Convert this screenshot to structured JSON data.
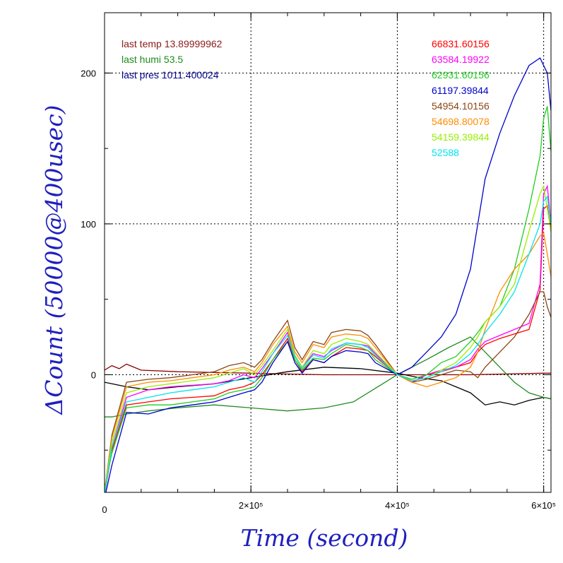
{
  "chart_data": {
    "type": "line",
    "xlabel": "Time (second)",
    "ylabel": "ΔCount (50000@400usec)",
    "xlim": [
      0,
      610000
    ],
    "ylim": [
      -78,
      240
    ],
    "x_ticks": [
      {
        "value": 0,
        "label": "0"
      },
      {
        "value": 200000,
        "label": "2×10⁵"
      },
      {
        "value": 400000,
        "label": "4×10⁵"
      },
      {
        "value": 600000,
        "label": "6×10⁵"
      }
    ],
    "y_ticks": [
      {
        "value": 0,
        "label": "0"
      },
      {
        "value": 100,
        "label": "100"
      },
      {
        "value": 200,
        "label": "200"
      }
    ],
    "grid": true,
    "info_labels": [
      {
        "text": "last temp 13.89999962",
        "color": "#8b1a1a"
      },
      {
        "text": "last humi 53.5",
        "color": "#1a8c1a"
      },
      {
        "text": "last pres 1011.400024",
        "color": "#00008b"
      }
    ],
    "legend_placement": "top-right",
    "series": [
      {
        "name": "66831.60156",
        "color": "#ff0000",
        "y": [
          -80,
          -50,
          -20,
          -18,
          -16,
          -15,
          -14,
          -10,
          -8,
          -5,
          0,
          10,
          24,
          10,
          2,
          10,
          8,
          12,
          18,
          17,
          16,
          12,
          0,
          -5,
          0,
          2,
          5,
          8,
          15,
          20,
          24,
          27,
          30,
          56,
          110,
          112,
          95
        ]
      },
      {
        "name": "63584.19922",
        "color": "#ff00ff",
        "y": [
          -80,
          -48,
          -15,
          -10,
          -8,
          -7,
          -6,
          -4,
          0,
          -2,
          4,
          14,
          28,
          13,
          5,
          14,
          12,
          16,
          21,
          20,
          19,
          14,
          0,
          -5,
          0,
          3,
          5,
          10,
          17,
          22,
          26,
          30,
          34,
          60,
          120,
          125,
          100
        ]
      },
      {
        "name": "62931.60156",
        "color": "#22cc22",
        "y": [
          -75,
          -52,
          -22,
          -20,
          -20,
          -18,
          -16,
          -12,
          -10,
          -8,
          -2,
          10,
          22,
          10,
          3,
          11,
          10,
          14,
          20,
          18,
          16,
          10,
          0,
          -3,
          0,
          8,
          12,
          22,
          28,
          35,
          45,
          70,
          110,
          145,
          170,
          178,
          148
        ]
      },
      {
        "name": "61197.39844",
        "color": "#0000cc",
        "y": [
          -82,
          -60,
          -25,
          -26,
          -22,
          -20,
          -18,
          -15,
          -12,
          -10,
          -5,
          8,
          22,
          8,
          1,
          10,
          8,
          12,
          16,
          15,
          14,
          8,
          0,
          5,
          15,
          25,
          40,
          70,
          100,
          130,
          160,
          185,
          205,
          210,
          205,
          200,
          175
        ]
      },
      {
        "name": "54954.10156",
        "color": "#8b4513",
        "y": [
          -78,
          -40,
          -5,
          -3,
          -2,
          0,
          2,
          6,
          8,
          5,
          10,
          22,
          36,
          18,
          10,
          22,
          20,
          28,
          30,
          29,
          26,
          20,
          0,
          -5,
          -3,
          0,
          3,
          2,
          -2,
          5,
          15,
          25,
          40,
          55,
          55,
          45,
          38
        ]
      },
      {
        "name": "54698.80078",
        "color": "#ff8c00",
        "y": [
          -78,
          -42,
          -8,
          -5,
          -4,
          -2,
          0,
          3,
          5,
          2,
          8,
          20,
          32,
          15,
          8,
          20,
          18,
          25,
          27,
          26,
          24,
          18,
          0,
          -5,
          -8,
          -5,
          -2,
          5,
          15,
          30,
          55,
          70,
          80,
          92,
          94,
          80,
          65
        ]
      },
      {
        "name": "54159.39844",
        "color": "#99ee00",
        "y": [
          -78,
          -45,
          -12,
          -8,
          -6,
          -4,
          -2,
          1,
          4,
          0,
          6,
          16,
          30,
          13,
          5,
          16,
          14,
          20,
          24,
          22,
          20,
          15,
          0,
          -4,
          -2,
          3,
          8,
          18,
          25,
          35,
          45,
          60,
          95,
          120,
          125,
          110,
          95
        ]
      },
      {
        "name": "52588",
        "color": "#00e5ee",
        "y": [
          -80,
          -48,
          -18,
          -15,
          -12,
          -10,
          -8,
          -5,
          -2,
          -5,
          2,
          14,
          26,
          12,
          4,
          13,
          11,
          17,
          21,
          20,
          18,
          13,
          0,
          -4,
          -2,
          2,
          6,
          14,
          20,
          28,
          40,
          55,
          80,
          100,
          115,
          118,
          100
        ]
      }
    ],
    "x_shared": [
      0,
      10000,
      30000,
      60000,
      90000,
      120000,
      150000,
      170000,
      190000,
      205000,
      215000,
      230000,
      250000,
      260000,
      270000,
      285000,
      300000,
      310000,
      330000,
      350000,
      360000,
      370000,
      400000,
      420000,
      440000,
      460000,
      480000,
      500000,
      510000,
      520000,
      540000,
      560000,
      580000,
      595000,
      600000,
      605000,
      610000
    ],
    "extra_series": [
      {
        "name": "",
        "color": "#8b0000",
        "x": [
          0,
          10000,
          20000,
          30000,
          50000,
          100000,
          200000,
          300000,
          400000,
          500000,
          600000,
          610000
        ],
        "y": [
          3,
          6,
          4,
          7,
          3,
          2,
          1,
          0,
          0,
          0,
          1,
          1
        ]
      },
      {
        "name": "",
        "color": "#000000",
        "x": [
          0,
          10000,
          30000,
          60000,
          100000,
          150000,
          200000,
          250000,
          300000,
          350000,
          400000,
          430000,
          460000,
          480000,
          500000,
          520000,
          540000,
          560000,
          580000,
          600000,
          610000
        ],
        "y": [
          -5,
          -6,
          -8,
          -10,
          -8,
          -6,
          -2,
          2,
          5,
          4,
          1,
          -2,
          -4,
          -8,
          -12,
          -20,
          -18,
          -20,
          -17,
          -15,
          -16
        ]
      },
      {
        "name": "",
        "color": "#228b22",
        "x": [
          0,
          10000,
          30000,
          60000,
          100000,
          150000,
          200000,
          250000,
          300000,
          340000,
          380000,
          400000,
          440000,
          470000,
          500000,
          520000,
          540000,
          560000,
          580000,
          600000,
          610000
        ],
        "y": [
          -28,
          -28,
          -26,
          -24,
          -22,
          -20,
          -22,
          -24,
          -22,
          -18,
          -6,
          0,
          10,
          18,
          25,
          15,
          5,
          -5,
          -12,
          -15,
          -16
        ]
      }
    ]
  }
}
